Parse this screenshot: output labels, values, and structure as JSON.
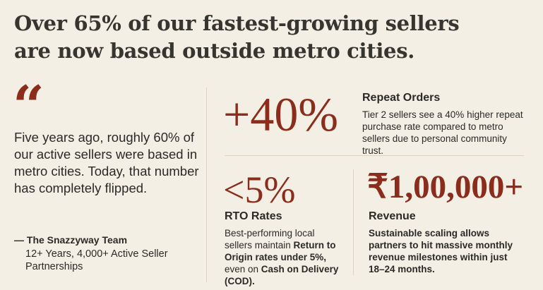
{
  "title": {
    "line1": "Over 65% of our fastest-growing sellers",
    "line2": "are now based outside metro cities."
  },
  "quote": {
    "mark": "“",
    "text": "Five years ago, roughly 60% of our active sellers were based in metro cities. Today, that number has completely flipped.",
    "author": "— The Snazzyway Team",
    "credentials": "12+ Years, 4,000+ Active Seller Partnerships"
  },
  "stats": [
    {
      "value": "+40%",
      "label": "Repeat Orders",
      "description": [
        "Tier 2 sellers see a 40% higher repeat purchase rate compared to metro sellers due to personal community trust."
      ]
    },
    {
      "value": "<5%",
      "label": "RTO Rates",
      "description": [
        "Best-performing local sellers maintain ",
        "Return to Origin rates under 5%,",
        " even on ",
        "Cash on Delivery (COD)."
      ]
    },
    {
      "value": "₹1,00,000+",
      "label": "Revenue",
      "description": [
        "Sustainable scaling allows partners to hit massive monthly revenue milestones within just 18–24 months."
      ]
    }
  ]
}
